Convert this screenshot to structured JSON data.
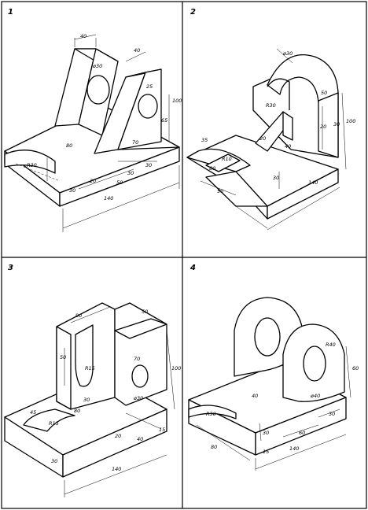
{
  "panels": [
    {
      "number": "1",
      "dims": [
        "40",
        "40",
        "ø30",
        "25",
        "100",
        "65",
        "80",
        "R30",
        "20",
        "30",
        "50",
        "70",
        "30",
        "30",
        "140"
      ]
    },
    {
      "number": "2",
      "dims": [
        "ø30",
        "R30",
        "50",
        "100",
        "20",
        "35",
        "R10",
        "20",
        "80",
        "30",
        "40",
        "30",
        "50",
        "140"
      ]
    },
    {
      "number": "3",
      "dims": [
        "90",
        "50",
        "50",
        "R15",
        "70",
        "100",
        "ø30",
        "80",
        "45",
        "R15",
        "30",
        "20",
        "40",
        "15",
        "30",
        "140"
      ]
    },
    {
      "number": "4",
      "dims": [
        "R40",
        "60",
        "ø40",
        "40",
        "R30",
        "30",
        "60",
        "30",
        "80",
        "15",
        "140"
      ]
    }
  ]
}
